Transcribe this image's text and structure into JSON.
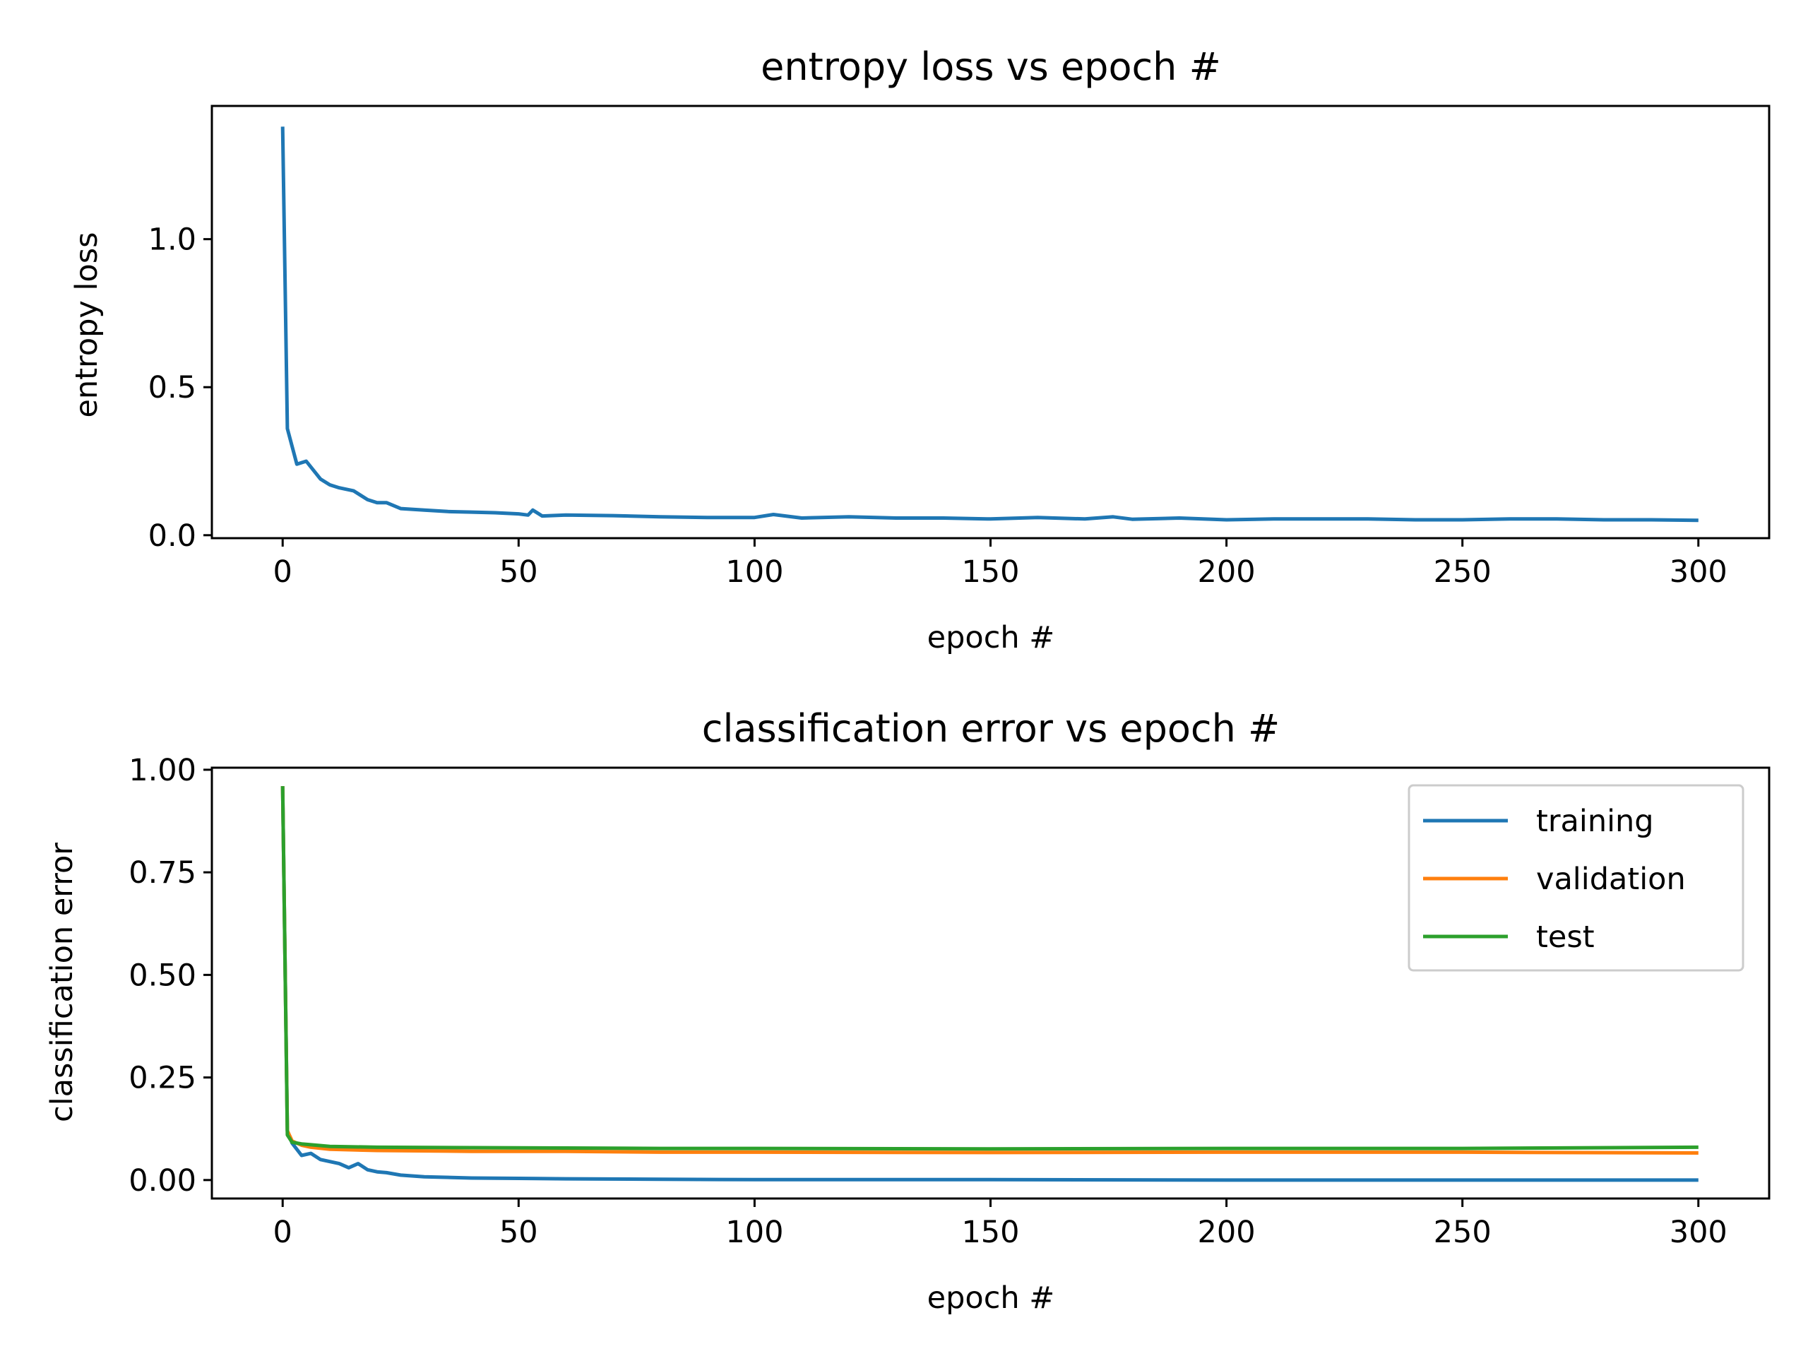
{
  "chart_data": [
    {
      "type": "line",
      "title": "entropy loss vs epoch #",
      "xlabel": "epoch #",
      "ylabel": "entropy loss",
      "xlim": [
        -15,
        315
      ],
      "ylim": [
        -0.01,
        1.45
      ],
      "xticks": [
        0,
        50,
        100,
        150,
        200,
        250,
        300
      ],
      "xtick_labels": [
        "0",
        "50",
        "100",
        "150",
        "200",
        "250",
        "300"
      ],
      "yticks": [
        0.0,
        0.5,
        1.0
      ],
      "ytick_labels": [
        "0.0",
        "0.5",
        "1.0"
      ],
      "grid": false,
      "legend": false,
      "series": [
        {
          "color": "#1f77b4",
          "x": [
            0,
            1,
            3,
            5,
            8,
            10,
            12,
            15,
            18,
            20,
            22,
            25,
            30,
            35,
            40,
            45,
            50,
            52,
            53,
            55,
            60,
            70,
            80,
            90,
            100,
            104,
            110,
            120,
            130,
            140,
            150,
            160,
            170,
            176,
            180,
            190,
            200,
            210,
            220,
            230,
            240,
            250,
            260,
            270,
            280,
            290,
            300
          ],
          "y": [
            1.38,
            0.36,
            0.24,
            0.25,
            0.19,
            0.17,
            0.16,
            0.15,
            0.12,
            0.11,
            0.11,
            0.09,
            0.085,
            0.08,
            0.078,
            0.076,
            0.072,
            0.068,
            0.085,
            0.065,
            0.068,
            0.066,
            0.062,
            0.06,
            0.06,
            0.07,
            0.058,
            0.062,
            0.058,
            0.058,
            0.055,
            0.06,
            0.055,
            0.062,
            0.054,
            0.058,
            0.052,
            0.055,
            0.055,
            0.055,
            0.052,
            0.052,
            0.055,
            0.055,
            0.052,
            0.052,
            0.05
          ]
        }
      ]
    },
    {
      "type": "line",
      "title": "classification error vs epoch #",
      "xlabel": "epoch #",
      "ylabel": "classification error",
      "xlim": [
        -15,
        315
      ],
      "ylim": [
        -0.045,
        1.005
      ],
      "xticks": [
        0,
        50,
        100,
        150,
        200,
        250,
        300
      ],
      "xtick_labels": [
        "0",
        "50",
        "100",
        "150",
        "200",
        "250",
        "300"
      ],
      "yticks": [
        0.0,
        0.25,
        0.5,
        0.75,
        1.0
      ],
      "ytick_labels": [
        "0.00",
        "0.25",
        "0.50",
        "0.75",
        "1.00"
      ],
      "grid": false,
      "legend": "top-right",
      "series": [
        {
          "name": "training",
          "color": "#1f77b4",
          "x": [
            0,
            1,
            2,
            4,
            6,
            8,
            10,
            12,
            14,
            16,
            18,
            20,
            22,
            25,
            30,
            40,
            50,
            60,
            80,
            100,
            120,
            150,
            200,
            250,
            300
          ],
          "y": [
            0.96,
            0.12,
            0.09,
            0.06,
            0.065,
            0.05,
            0.045,
            0.04,
            0.03,
            0.04,
            0.025,
            0.02,
            0.018,
            0.012,
            0.008,
            0.005,
            0.004,
            0.003,
            0.002,
            0.001,
            0.001,
            0.001,
            0.0,
            0.0,
            0.0
          ]
        },
        {
          "name": "validation",
          "color": "#ff7f0e",
          "x": [
            0,
            1,
            2,
            4,
            6,
            10,
            20,
            40,
            60,
            80,
            100,
            150,
            200,
            250,
            300
          ],
          "y": [
            0.96,
            0.12,
            0.095,
            0.085,
            0.08,
            0.075,
            0.072,
            0.07,
            0.07,
            0.068,
            0.068,
            0.067,
            0.068,
            0.068,
            0.066
          ]
        },
        {
          "name": "test",
          "color": "#2ca02c",
          "x": [
            0,
            1,
            2,
            4,
            6,
            10,
            20,
            40,
            60,
            80,
            100,
            150,
            200,
            250,
            300
          ],
          "y": [
            0.96,
            0.11,
            0.092,
            0.088,
            0.086,
            0.082,
            0.08,
            0.079,
            0.078,
            0.077,
            0.077,
            0.076,
            0.077,
            0.077,
            0.08
          ]
        }
      ]
    }
  ]
}
